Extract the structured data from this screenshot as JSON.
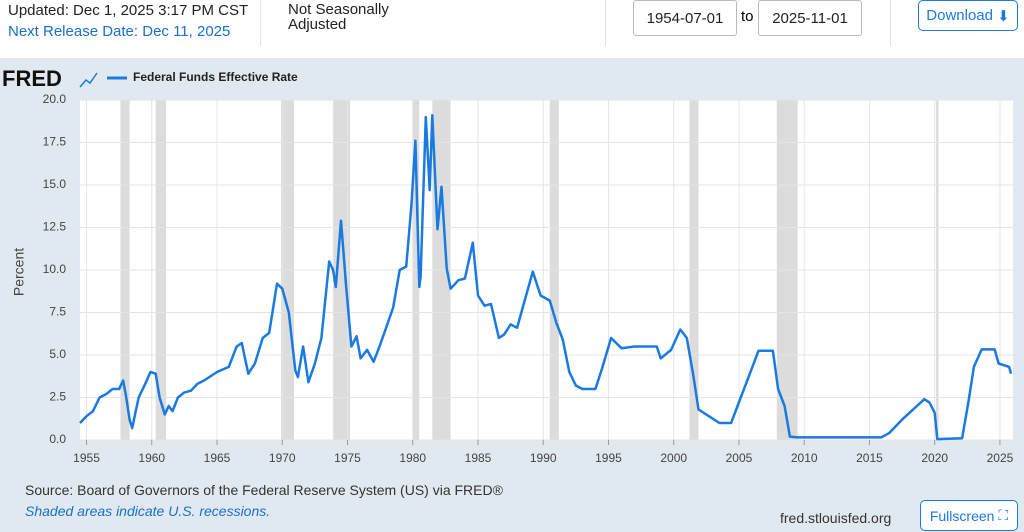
{
  "header": {
    "updated": "Updated: Dec 1, 2025 3:17 PM CST",
    "next_release": "Next Release Date: Dec 11, 2025",
    "adjustment": "Not Seasonally Adjusted",
    "start_date": "1954-07-01",
    "to": "to",
    "end_date": "2025-11-01",
    "download": "Download"
  },
  "logo": "FRED",
  "chart_data": {
    "type": "line",
    "ylabel": "Percent",
    "xlim": [
      1954.5,
      2026.0
    ],
    "xticks": [
      1955,
      1960,
      1965,
      1970,
      1975,
      1980,
      1985,
      1990,
      1995,
      2000,
      2005,
      2010,
      2015,
      2020,
      2025
    ],
    "ylim": [
      0,
      20
    ],
    "yticks": [
      {
        "value": 0,
        "label": "0.0"
      },
      2.5,
      {
        "value": 5,
        "label": "5.0"
      },
      7.5,
      {
        "value": 10,
        "label": "10.0"
      },
      12.5,
      {
        "value": 15,
        "label": "15.0"
      },
      17.5,
      {
        "value": 20,
        "label": "20.0"
      }
    ],
    "grid": true,
    "recessions": [
      [
        1957.6,
        1958.3
      ],
      [
        1960.3,
        1961.1
      ],
      [
        1969.9,
        1970.9
      ],
      [
        1973.9,
        1975.2
      ],
      [
        1980.0,
        1980.5
      ],
      [
        1981.5,
        1982.9
      ],
      [
        1990.5,
        1991.2
      ],
      [
        2001.2,
        2001.9
      ],
      [
        2007.9,
        2009.5
      ],
      [
        2020.1,
        2020.3
      ]
    ],
    "x": [
      1954.5,
      1955.0,
      1955.5,
      1956.0,
      1956.5,
      1957.0,
      1957.5,
      1957.8,
      1958.0,
      1958.3,
      1958.5,
      1958.8,
      1959.0,
      1959.5,
      1959.9,
      1960.3,
      1960.6,
      1961.0,
      1961.3,
      1961.6,
      1962.0,
      1962.5,
      1963.0,
      1963.5,
      1964.0,
      1965.0,
      1965.9,
      1966.5,
      1966.9,
      1967.4,
      1967.9,
      1968.5,
      1969.0,
      1969.6,
      1970.0,
      1970.5,
      1971.0,
      1971.2,
      1971.6,
      1972.0,
      1972.5,
      1973.0,
      1973.6,
      1973.9,
      1974.1,
      1974.5,
      1974.9,
      1975.3,
      1975.7,
      1976.0,
      1976.5,
      1977.0,
      1977.5,
      1978.0,
      1978.5,
      1979.0,
      1979.5,
      1979.9,
      1980.2,
      1980.5,
      1980.6,
      1981.0,
      1981.3,
      1981.5,
      1981.9,
      1982.2,
      1982.6,
      1982.9,
      1983.5,
      1984.0,
      1984.6,
      1985.0,
      1985.5,
      1986.0,
      1986.6,
      1987.0,
      1987.5,
      1988.0,
      1988.5,
      1989.2,
      1989.8,
      1990.5,
      1991.0,
      1991.5,
      1992.0,
      1992.5,
      1993.0,
      1994.0,
      1994.5,
      1995.2,
      1996.0,
      1997.0,
      1998.7,
      1999.0,
      1999.8,
      2000.5,
      2001.0,
      2001.5,
      2001.9,
      2002.9,
      2003.5,
      2004.4,
      2006.5,
      2007.6,
      2008.0,
      2008.5,
      2008.9,
      2009.5,
      2015.9,
      2016.5,
      2017.5,
      2018.5,
      2019.2,
      2019.6,
      2020.0,
      2020.2,
      2022.1,
      2022.6,
      2023.0,
      2023.6,
      2024.6,
      2024.9,
      2025.7,
      2025.85
    ],
    "series": [
      {
        "name": "Federal Funds Effective Rate",
        "color": "#1a7ae0",
        "values": [
          1.0,
          1.4,
          1.7,
          2.5,
          2.7,
          3.0,
          3.0,
          3.5,
          2.7,
          1.2,
          0.7,
          1.8,
          2.5,
          3.3,
          4.0,
          3.9,
          2.5,
          1.5,
          2.0,
          1.7,
          2.5,
          2.8,
          2.9,
          3.3,
          3.5,
          4.0,
          4.3,
          5.5,
          5.7,
          3.9,
          4.5,
          6.0,
          6.3,
          9.2,
          8.9,
          7.5,
          4.1,
          3.7,
          5.5,
          3.4,
          4.5,
          6.0,
          10.5,
          10.0,
          9.0,
          12.9,
          9.0,
          5.5,
          6.1,
          4.8,
          5.3,
          4.6,
          5.6,
          6.7,
          7.8,
          10.0,
          10.2,
          13.8,
          17.6,
          9.0,
          9.6,
          19.0,
          14.7,
          19.1,
          12.4,
          14.9,
          10.1,
          8.9,
          9.4,
          9.5,
          11.6,
          8.5,
          7.9,
          8.0,
          6.0,
          6.2,
          6.8,
          6.6,
          8.0,
          9.9,
          8.5,
          8.2,
          6.9,
          5.9,
          4.0,
          3.2,
          3.0,
          3.0,
          4.2,
          6.0,
          5.4,
          5.5,
          5.5,
          4.8,
          5.3,
          6.5,
          6.0,
          3.8,
          1.8,
          1.3,
          1.0,
          1.0,
          5.25,
          5.25,
          3.0,
          2.0,
          0.2,
          0.15,
          0.15,
          0.4,
          1.2,
          1.9,
          2.4,
          2.2,
          1.6,
          0.05,
          0.1,
          2.3,
          4.3,
          5.33,
          5.33,
          4.5,
          4.3,
          3.9
        ]
      }
    ]
  },
  "footer": {
    "source": "Source: Board of Governors of the Federal Reserve System (US) via FRED®",
    "note": "Shaded areas indicate U.S. recessions.",
    "site": "fred.stlouisfed.org",
    "fullscreen": "Fullscreen"
  }
}
